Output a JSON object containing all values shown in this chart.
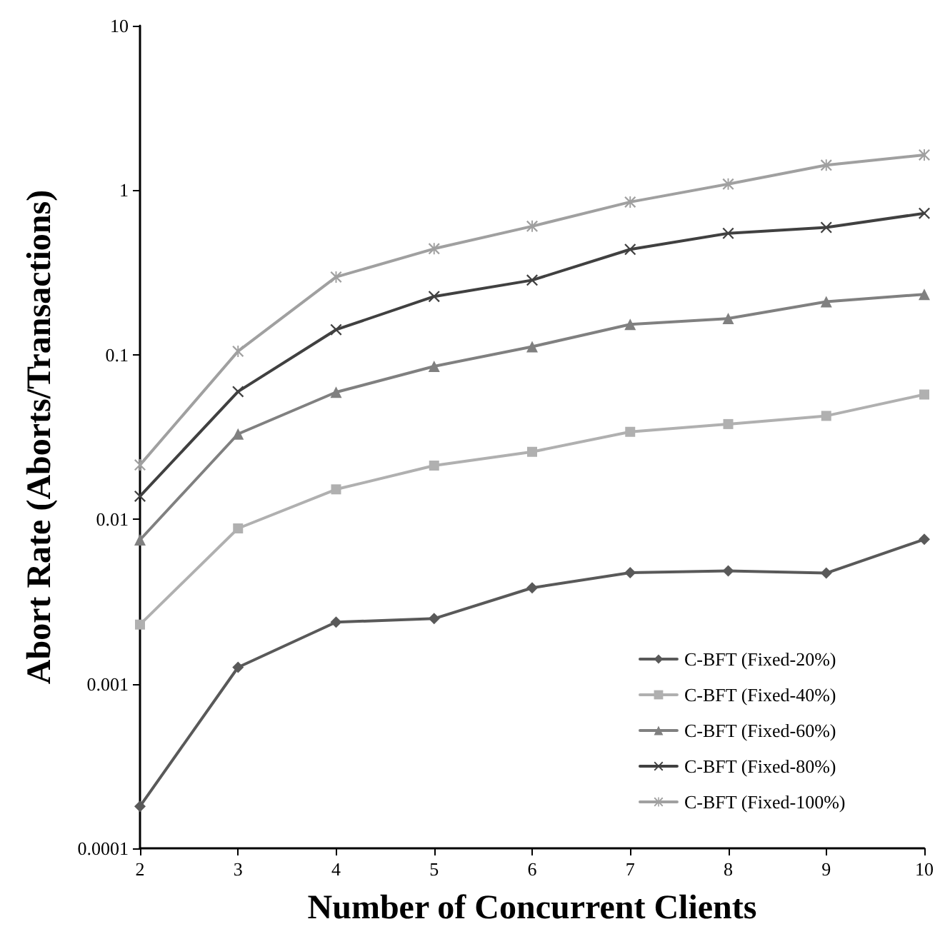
{
  "chart_data": {
    "type": "line",
    "xlabel": "Number of Concurrent Clients",
    "ylabel": "Abort Rate (Aborts/Transactions)",
    "x": [
      2,
      3,
      4,
      5,
      6,
      7,
      8,
      9,
      10
    ],
    "series": [
      {
        "name": "C-BFT (Fixed-20%)",
        "color": "#595959",
        "marker": "diamond",
        "values": [
          0.00018,
          0.00126,
          0.00237,
          0.00249,
          0.00383,
          0.00474,
          0.00486,
          0.00471,
          0.00755
        ]
      },
      {
        "name": "C-BFT (Fixed-40%)",
        "color": "#b0b0b0",
        "marker": "square",
        "values": [
          0.00229,
          0.0088,
          0.0152,
          0.0212,
          0.0257,
          0.034,
          0.0379,
          0.0425,
          0.0573
        ]
      },
      {
        "name": "C-BFT (Fixed-60%)",
        "color": "#808080",
        "marker": "triangle",
        "values": [
          0.0075,
          0.033,
          0.0592,
          0.0851,
          0.112,
          0.153,
          0.166,
          0.21,
          0.233
        ]
      },
      {
        "name": "C-BFT (Fixed-80%)",
        "color": "#404040",
        "marker": "cross",
        "values": [
          0.0138,
          0.0597,
          0.142,
          0.226,
          0.284,
          0.437,
          0.547,
          0.594,
          0.724
        ]
      },
      {
        "name": "C-BFT (Fixed-100%)",
        "color": "#a0a0a0",
        "marker": "star",
        "values": [
          0.0214,
          0.105,
          0.297,
          0.441,
          0.604,
          0.848,
          1.09,
          1.42,
          1.64
        ]
      }
    ],
    "xlim": [
      2,
      10
    ],
    "xticks": [
      2,
      3,
      4,
      5,
      6,
      7,
      8,
      9,
      10
    ],
    "ylim": [
      0.0001,
      10
    ],
    "yticks": [
      0.0001,
      0.001,
      0.01,
      0.1,
      1,
      10
    ],
    "log": "y",
    "grid": false,
    "legend": "bottom right",
    "line_style": "solid"
  }
}
